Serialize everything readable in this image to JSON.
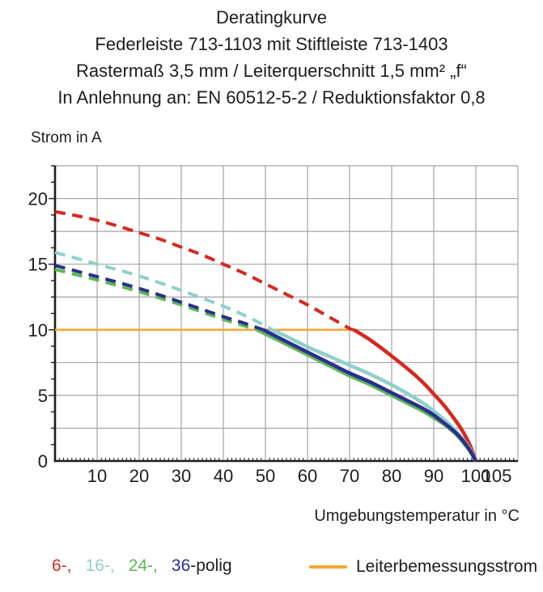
{
  "title": {
    "line1": "Deratingkurve",
    "line2": "Federleiste 713-1103 mit Stiftleiste 713-1403",
    "line3": "Rastermaß 3,5 mm / Leiterquerschnitt 1,5 mm² „f“",
    "line4": "In Anlehnung an: EN 60512-5-2 / Reduktionsfaktor 0,8"
  },
  "chart_data": {
    "type": "line",
    "title": "Deratingkurve",
    "xlabel": "Umgebungstemperatur in °C",
    "ylabel": "Strom in A",
    "xlim": [
      0,
      110
    ],
    "ylim": [
      0,
      22.5
    ],
    "x_tick_labels": [
      10,
      20,
      30,
      40,
      50,
      60,
      70,
      80,
      90,
      100,
      105
    ],
    "y_tick_labels": [
      0,
      5,
      10,
      15,
      20
    ],
    "x_grid_step": 10,
    "y_grid_step": 2.5,
    "x_minor_tick_step": 1,
    "y_minor_tick_step": 1.25,
    "grid": true,
    "grid_color": "#a3a3a3",
    "axis_color": "#1d1d1b",
    "legend_position": "bottom",
    "series": [
      {
        "name": "6-polig",
        "color": "#d7281f",
        "dashed": [
          [
            0,
            19
          ],
          [
            5,
            18.7
          ],
          [
            10,
            18.35
          ],
          [
            15,
            17.9
          ],
          [
            20,
            17.4
          ],
          [
            25,
            16.9
          ],
          [
            30,
            16.3
          ],
          [
            35,
            15.7
          ],
          [
            40,
            15.0
          ],
          [
            45,
            14.3
          ],
          [
            50,
            13.5
          ],
          [
            55,
            12.7
          ],
          [
            60,
            11.9
          ],
          [
            65,
            11.0
          ],
          [
            70,
            10.1
          ],
          [
            71,
            10
          ]
        ],
        "solid": [
          [
            71,
            10
          ],
          [
            75,
            9.2
          ],
          [
            80,
            8.0
          ],
          [
            85,
            6.7
          ],
          [
            88,
            5.8
          ],
          [
            90,
            5.1
          ],
          [
            92,
            4.4
          ],
          [
            94,
            3.6
          ],
          [
            96,
            2.7
          ],
          [
            97,
            2.2
          ],
          [
            98,
            1.6
          ],
          [
            99,
            0.9
          ],
          [
            100,
            0
          ]
        ]
      },
      {
        "name": "24-polig",
        "color": "#5cb656",
        "dashed": [
          [
            0,
            14.6
          ],
          [
            10,
            13.8
          ],
          [
            20,
            12.9
          ],
          [
            30,
            11.9
          ],
          [
            40,
            10.8
          ],
          [
            44,
            10.4
          ],
          [
            48,
            10
          ]
        ],
        "solid": [
          [
            48,
            10
          ],
          [
            55,
            8.9
          ],
          [
            60,
            8.1
          ],
          [
            65,
            7.3
          ],
          [
            70,
            6.5
          ],
          [
            75,
            5.8
          ],
          [
            80,
            5.0
          ],
          [
            85,
            4.2
          ],
          [
            88,
            3.7
          ],
          [
            90,
            3.3
          ],
          [
            92,
            2.9
          ],
          [
            94,
            2.4
          ],
          [
            96,
            1.8
          ],
          [
            98,
            1.0
          ],
          [
            99,
            0.55
          ],
          [
            100,
            0
          ]
        ]
      },
      {
        "name": "16-polig",
        "color": "#8fcfcc",
        "dashed": [
          [
            0,
            15.9
          ],
          [
            10,
            15.0
          ],
          [
            20,
            14.1
          ],
          [
            30,
            13.0
          ],
          [
            40,
            11.8
          ],
          [
            45,
            11.1
          ],
          [
            50,
            10.3
          ],
          [
            51.5,
            10
          ]
        ],
        "solid": [
          [
            51.5,
            10
          ],
          [
            55,
            9.5
          ],
          [
            60,
            8.7
          ],
          [
            65,
            8.0
          ],
          [
            70,
            7.3
          ],
          [
            75,
            6.6
          ],
          [
            80,
            5.8
          ],
          [
            85,
            4.9
          ],
          [
            88,
            4.3
          ],
          [
            90,
            3.8
          ],
          [
            92,
            3.3
          ],
          [
            94,
            2.7
          ],
          [
            96,
            2.0
          ],
          [
            98,
            1.2
          ],
          [
            99,
            0.7
          ],
          [
            100,
            0
          ]
        ]
      },
      {
        "name": "36-polig",
        "color": "#2c2f8e",
        "dashed": [
          [
            0,
            14.9
          ],
          [
            10,
            14.05
          ],
          [
            20,
            13.15
          ],
          [
            30,
            12.1
          ],
          [
            40,
            11.0
          ],
          [
            45,
            10.5
          ],
          [
            49.5,
            10
          ]
        ],
        "solid": [
          [
            49.5,
            10
          ],
          [
            55,
            9.1
          ],
          [
            60,
            8.3
          ],
          [
            65,
            7.5
          ],
          [
            70,
            6.7
          ],
          [
            75,
            6.0
          ],
          [
            80,
            5.2
          ],
          [
            85,
            4.4
          ],
          [
            88,
            3.9
          ],
          [
            90,
            3.5
          ],
          [
            92,
            3.0
          ],
          [
            94,
            2.5
          ],
          [
            96,
            1.9
          ],
          [
            98,
            1.1
          ],
          [
            99,
            0.6
          ],
          [
            100,
            0
          ]
        ]
      }
    ],
    "rated_line": {
      "name": "Leiterbemessungsstrom",
      "color": "#f5a733",
      "points": [
        [
          0,
          10
        ],
        [
          71,
          10
        ]
      ]
    }
  },
  "legend": {
    "pole_items": [
      [
        {
          "text": "6-,",
          "color": "#d7281f"
        }
      ],
      [
        {
          "text": "16-,",
          "color": "#8fcfcc"
        }
      ],
      [
        {
          "text": "24-,",
          "color": "#5cb656"
        }
      ],
      [
        {
          "text": "36",
          "color": "#2c2f8e"
        },
        {
          "text": "-polig",
          "color": "#1d1d1b"
        }
      ]
    ],
    "rated_current": {
      "label": "Leiterbemessungsstrom"
    }
  }
}
